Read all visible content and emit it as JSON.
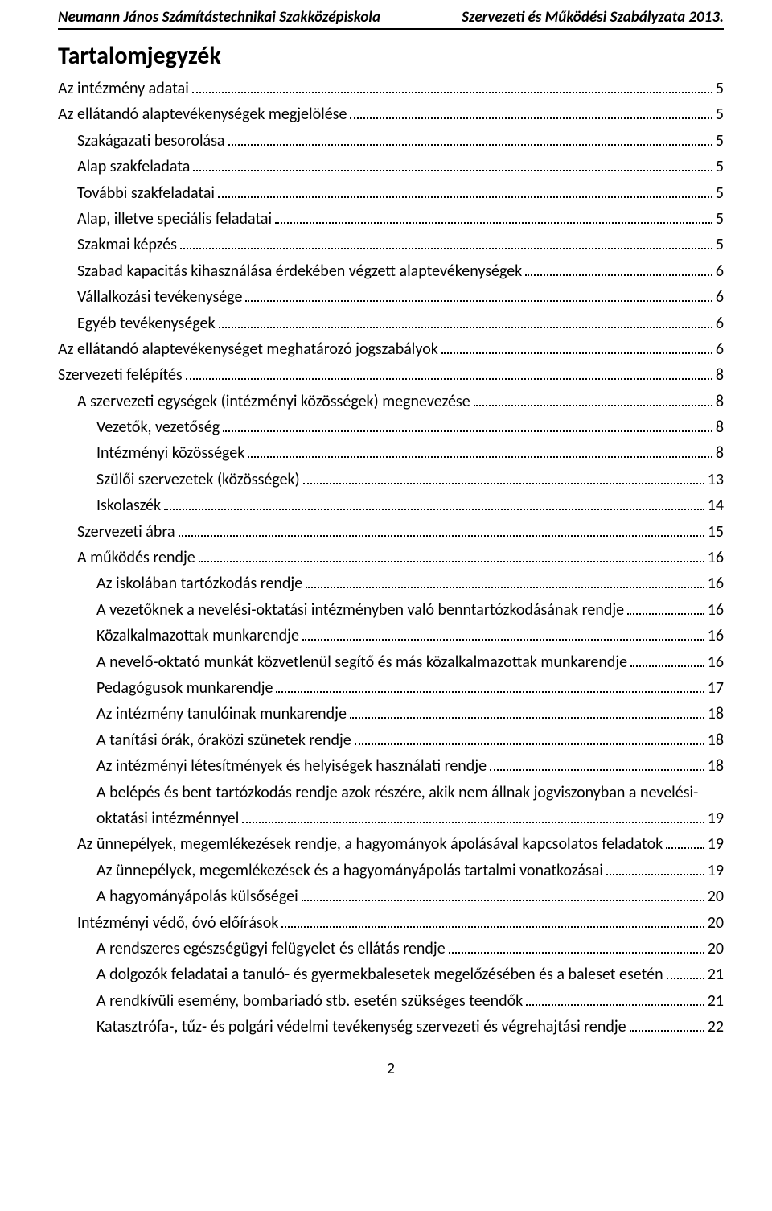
{
  "header": {
    "left": "Neumann János Számítástechnikai Szakközépiskola",
    "right": "Szervezeti és Működési Szabályzata 2013."
  },
  "title": "Tartalomjegyzék",
  "toc": [
    {
      "label": "Az intézmény adatai",
      "page": "5",
      "indent": 0
    },
    {
      "label": "Az ellátandó alaptevékenységek megjelölése",
      "page": "5",
      "indent": 0
    },
    {
      "label": "Szakágazati besorolása",
      "page": "5",
      "indent": 1
    },
    {
      "label": "Alap szakfeladata",
      "page": "5",
      "indent": 1
    },
    {
      "label": "További szakfeladatai",
      "page": "5",
      "indent": 1
    },
    {
      "label": "Alap, illetve speciális feladatai",
      "page": "5",
      "indent": 1
    },
    {
      "label": "Szakmai képzés",
      "page": "5",
      "indent": 1
    },
    {
      "label": "Szabad kapacitás kihasználása érdekében végzett alaptevékenységek",
      "page": "6",
      "indent": 1
    },
    {
      "label": "Vállalkozási tevékenysége",
      "page": "6",
      "indent": 1
    },
    {
      "label": "Egyéb tevékenységek",
      "page": "6",
      "indent": 1
    },
    {
      "label": "Az ellátandó alaptevékenységet meghatározó jogszabályok",
      "page": "6",
      "indent": 0
    },
    {
      "label": "Szervezeti felépítés",
      "page": "8",
      "indent": 0
    },
    {
      "label": "A szervezeti egységek (intézményi közösségek) megnevezése",
      "page": "8",
      "indent": 1
    },
    {
      "label": "Vezetők, vezetőség",
      "page": "8",
      "indent": 2
    },
    {
      "label": "Intézményi közösségek",
      "page": "8",
      "indent": 2
    },
    {
      "label": "Szülői szervezetek (közösségek)",
      "page": "13",
      "indent": 2
    },
    {
      "label": "Iskolaszék",
      "page": "14",
      "indent": 2
    },
    {
      "label": "Szervezeti ábra",
      "page": "15",
      "indent": 1
    },
    {
      "label": "A működés rendje",
      "page": "16",
      "indent": 1
    },
    {
      "label": "Az iskolában tartózkodás rendje",
      "page": "16",
      "indent": 2
    },
    {
      "label": "A vezetőknek a nevelési-oktatási intézményben való benntartózkodásának rendje",
      "page": "16",
      "indent": 2
    },
    {
      "label": "Közalkalmazottak munkarendje",
      "page": "16",
      "indent": 2
    },
    {
      "label": "A nevelő-oktató munkát közvetlenül segítő és más közalkalmazottak munkarendje",
      "page": "16",
      "indent": 2
    },
    {
      "label": "Pedagógusok munkarendje",
      "page": "17",
      "indent": 2
    },
    {
      "label": "Az intézmény tanulóinak munkarendje",
      "page": "18",
      "indent": 2
    },
    {
      "label": "A tanítási órák, óraközi szünetek rendje",
      "page": "18",
      "indent": 2
    },
    {
      "label": "Az intézményi létesítmények és helyiségek használati rendje",
      "page": "18",
      "indent": 2
    },
    {
      "wrap": true,
      "line1": "A belépés és bent tartózkodás rendje azok részére, akik nem állnak jogviszonyban a nevelési-",
      "line2": "oktatási intézménnyel",
      "page": "19",
      "indent": 2
    },
    {
      "label": "Az ünnepélyek, megemlékezések rendje, a hagyományok ápolásával kapcsolatos feladatok",
      "page": "19",
      "indent": 1
    },
    {
      "label": "Az ünnepélyek, megemlékezések és a hagyományápolás tartalmi vonatkozásai",
      "page": "19",
      "indent": 2
    },
    {
      "label": "A hagyományápolás külsőségei",
      "page": "20",
      "indent": 2
    },
    {
      "label": "Intézményi védő, óvó előírások",
      "page": "20",
      "indent": 1
    },
    {
      "label": "A rendszeres egészségügyi felügyelet és ellátás rendje",
      "page": "20",
      "indent": 2
    },
    {
      "label": "A dolgozók feladatai a tanuló- és gyermekbalesetek megelőzésében és a baleset esetén",
      "page": "21",
      "indent": 2
    },
    {
      "label": "A rendkívüli esemény, bombariadó stb. esetén szükséges teendők",
      "page": "21",
      "indent": 2
    },
    {
      "label": "Katasztrófa-, tűz- és polgári védelmi tevékenység szervezeti és végrehajtási rendje",
      "page": "22",
      "indent": 2
    }
  ],
  "page_number": "2",
  "colors": {
    "text": "#000000",
    "background": "#ffffff",
    "rule": "#000000"
  },
  "fonts": {
    "family": "Calibri",
    "title_size_pt": 22,
    "body_size_pt": 15,
    "header_size_pt": 14
  }
}
